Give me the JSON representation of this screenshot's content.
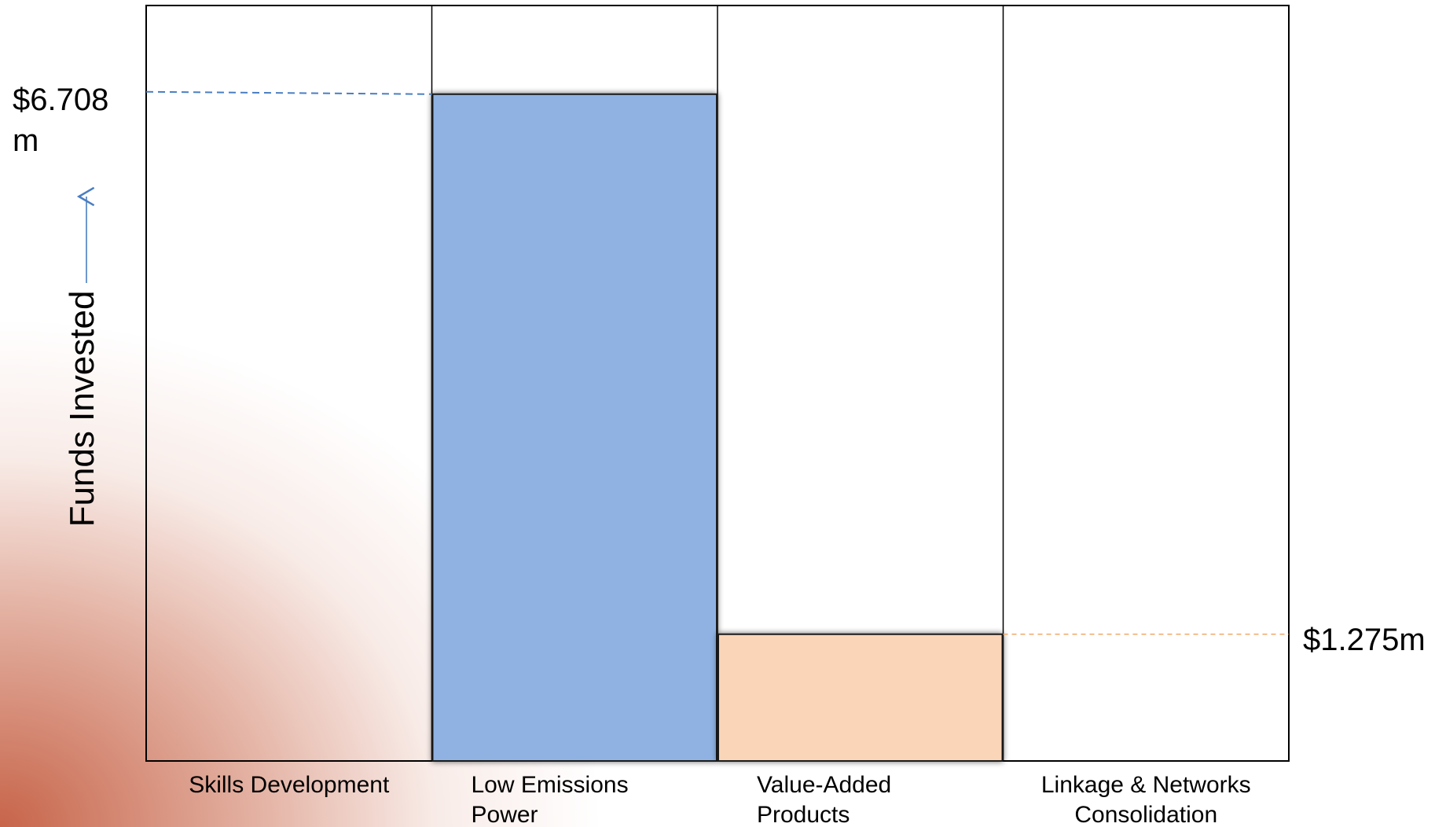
{
  "chart_data": {
    "type": "bar",
    "categories": [
      [
        "Skills Development"
      ],
      [
        "Low Emissions",
        "Power"
      ],
      [
        "Value-Added",
        "Products"
      ],
      [
        "Linkage & Networks",
        "Consolidation"
      ]
    ],
    "values": [
      0,
      6.708,
      1.275,
      0
    ],
    "bar_colors": [
      "#8fb2e3",
      "#8fb2e3",
      "#fbd5b7",
      "#8fb2e3"
    ],
    "ylabel": "Funds Invested",
    "ylim": [
      0,
      7.6
    ],
    "annotations": [
      {
        "label_lines": [
          "$6.708",
          "m"
        ],
        "value": 6.708,
        "side": "left",
        "color": "#4a7ec2"
      },
      {
        "label_lines": [
          "$1.275m"
        ],
        "value": 1.275,
        "side": "right",
        "color": "#f0a868"
      }
    ]
  }
}
